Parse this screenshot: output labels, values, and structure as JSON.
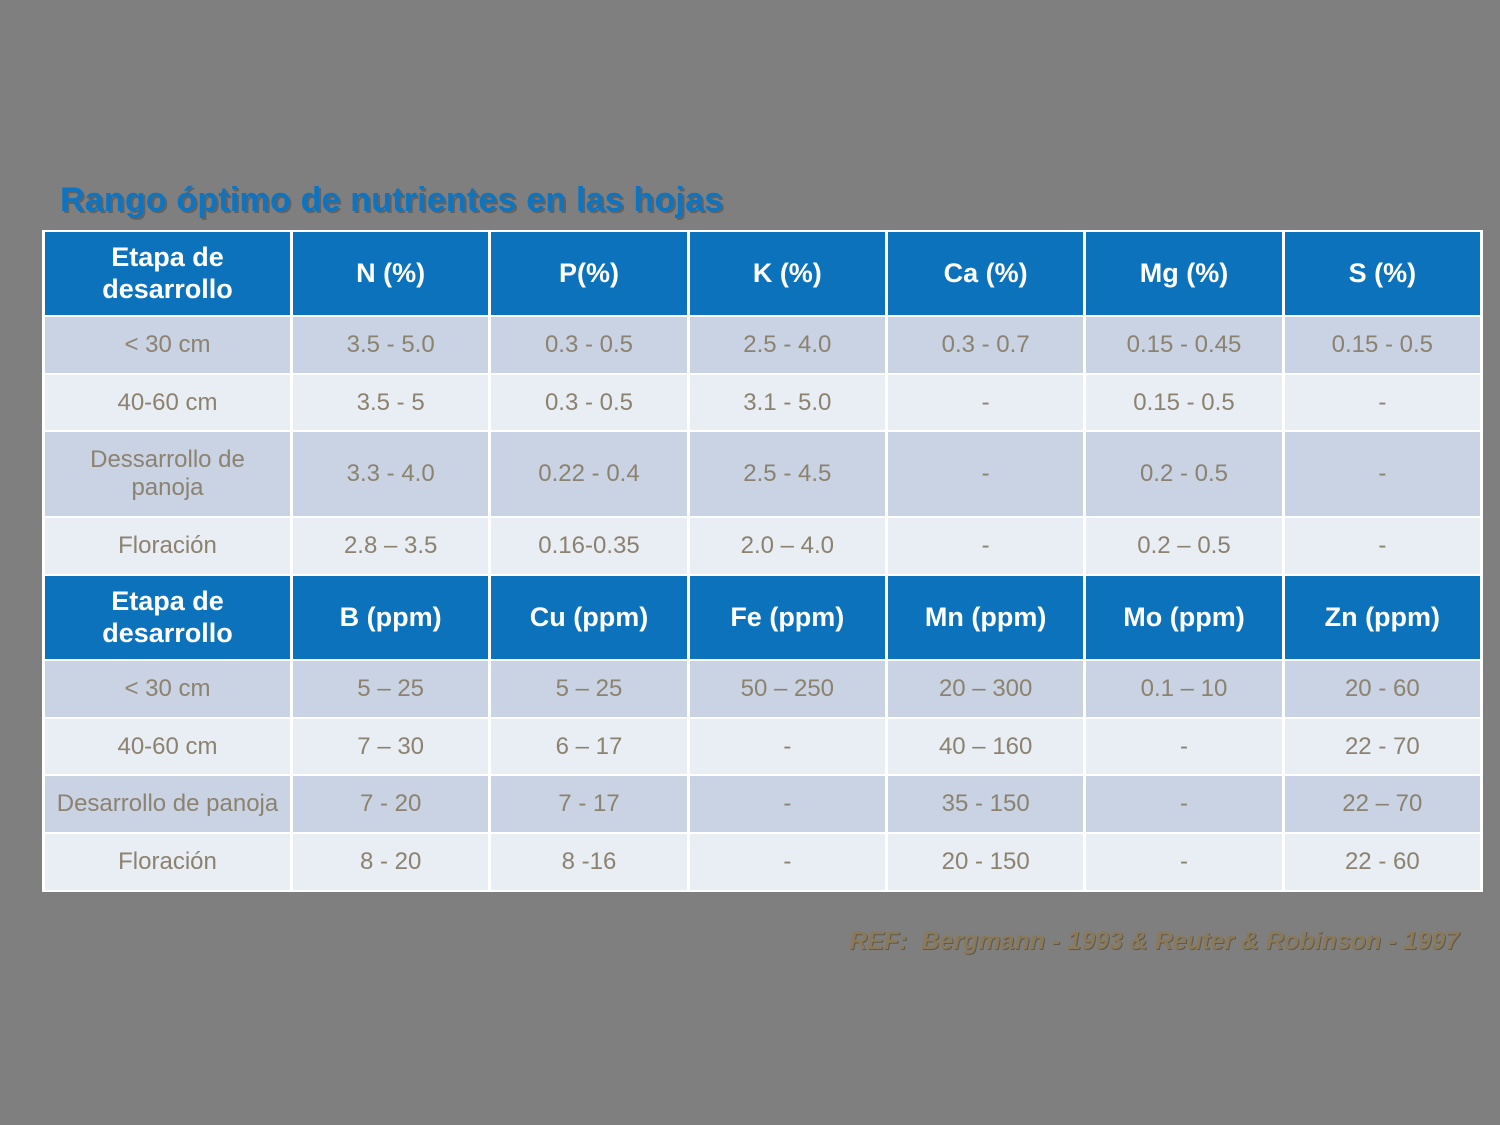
{
  "title": "Rango óptimo de nutrientes en las hojas",
  "reference": "REF:  Bergmann - 1993 & Reuter & Robinson - 1997",
  "colors": {
    "background": "#7F7F7F",
    "title_blue": "#0E74BF",
    "header_blue": "#0C72BC",
    "header_text": "#FFFFFF",
    "row_dark": "#C9D3E3",
    "row_light": "#E9EDF4",
    "cell_text": "#8C8270",
    "ref_text": "#8A7A5B",
    "grid_line": "#FFFFFF"
  },
  "chart_data": {
    "type": "table",
    "title": "Rango óptimo de nutrientes en las hojas"
  },
  "table": {
    "sections": [
      {
        "headers": [
          "Etapa de desarrollo",
          "N (%)",
          "P(%)",
          "K (%)",
          "Ca (%)",
          "Mg (%)",
          "S (%)"
        ],
        "rows": [
          [
            "< 30 cm",
            "3.5 - 5.0",
            "0.3 - 0.5",
            "2.5 - 4.0",
            "0.3 - 0.7",
            "0.15 - 0.45",
            "0.15 - 0.5"
          ],
          [
            "40-60 cm",
            "3.5 - 5",
            "0.3 - 0.5",
            "3.1 - 5.0",
            "-",
            "0.15 - 0.5",
            "-"
          ],
          [
            "Dessarrollo de panoja",
            "3.3 - 4.0",
            "0.22 - 0.4",
            "2.5 - 4.5",
            "-",
            "0.2 - 0.5",
            "-"
          ],
          [
            "Floración",
            "2.8 – 3.5",
            "0.16-0.35",
            "2.0 – 4.0",
            "-",
            "0.2 – 0.5",
            "-"
          ]
        ]
      },
      {
        "headers": [
          "Etapa de desarrollo",
          "B (ppm)",
          "Cu (ppm)",
          "Fe (ppm)",
          "Mn (ppm)",
          "Mo (ppm)",
          "Zn (ppm)"
        ],
        "rows": [
          [
            "< 30 cm",
            "5 – 25",
            "5 – 25",
            "50 – 250",
            "20 – 300",
            "0.1 – 10",
            "20 - 60"
          ],
          [
            "40-60 cm",
            "7 – 30",
            "6 – 17",
            "-",
            "40 – 160",
            "-",
            "22 - 70"
          ],
          [
            "Desarrollo de panoja",
            "7 - 20",
            "7 - 17",
            "-",
            "35 - 150",
            "-",
            "22 – 70"
          ],
          [
            "Floración",
            "8 - 20",
            "8 -16",
            "-",
            "20 - 150",
            "-",
            "22 - 60"
          ]
        ]
      }
    ]
  }
}
